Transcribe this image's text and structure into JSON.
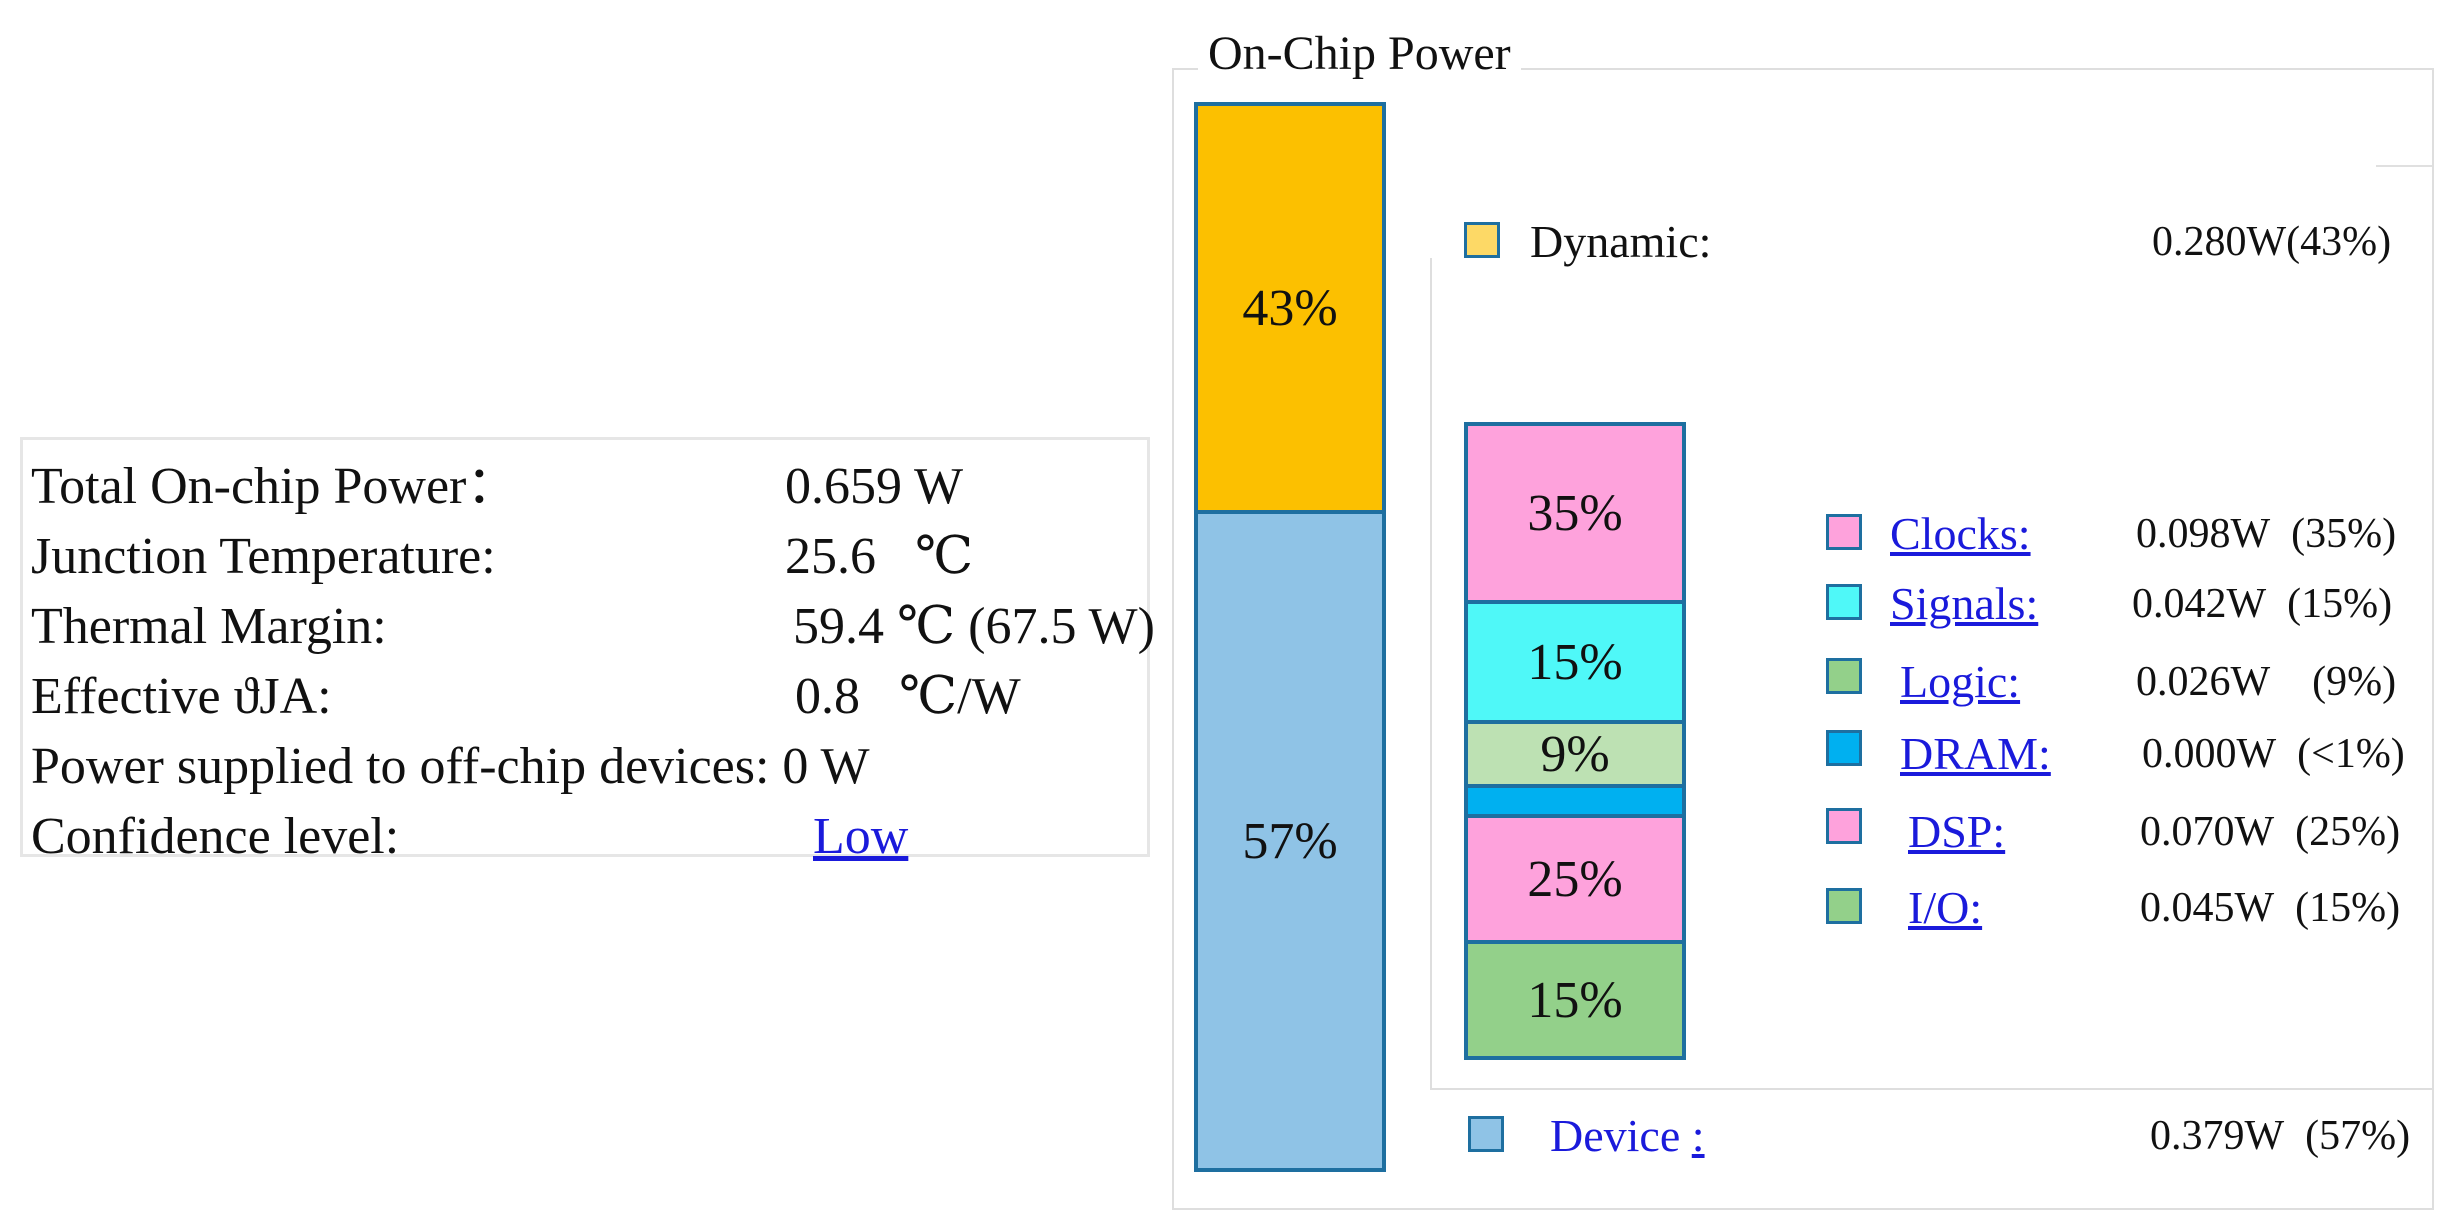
{
  "summary": {
    "rows": [
      {
        "label": "Total On-chip Power：",
        "value": "0.659 W"
      },
      {
        "label": "Junction Temperature:",
        "value": "25.6   ℃"
      },
      {
        "label": "Thermal Margin:",
        "value": "59.4 ℃ (67.5 W)"
      },
      {
        "label": "Effective ϑJA:",
        "value": "0.8   ℃/W"
      },
      {
        "label": "Power supplied to off-chip devices: 0 W",
        "value": ""
      },
      {
        "label": "Confidence level:",
        "value": "Low"
      }
    ]
  },
  "panel": {
    "title": "On-Chip Power",
    "main_bar": {
      "dynamic_pct": "43%",
      "device_pct": "57%"
    },
    "dynamic": {
      "label": "Dynamic:",
      "value": "0.280W(43%)"
    },
    "device": {
      "label": "Device",
      "colon": ":",
      "value": "0.379W  (57%)"
    },
    "breakdown": [
      {
        "pct_label": "35%",
        "label": "Clocks:",
        "value": "0.098W  (35%)"
      },
      {
        "pct_label": "15%",
        "label": "Signals:",
        "value": "0.042W  (15%)"
      },
      {
        "pct_label": "9%",
        "label": "Logic:",
        "value": "0.026W    (9%)"
      },
      {
        "pct_label": "",
        "label": "DRAM:",
        "value": "0.000W  (<1%)"
      },
      {
        "pct_label": "25%",
        "label": "DSP:",
        "value": "0.070W  (25%)"
      },
      {
        "pct_label": "15%",
        "label": "I/O:",
        "value": "0.045W  (15%)"
      }
    ]
  },
  "colors": {
    "dynamic": "#fcc000",
    "dynamic_swatch": "#fdd966",
    "device": "#8fc3e6",
    "clocks": "#fea2dc",
    "signals": "#4ff8f8",
    "logic": "#bde1b3",
    "logic_swatch": "#93d08a",
    "dram": "#00b0f0",
    "dsp": "#fea2dc",
    "io": "#93d08a",
    "border": "#1e6fa0",
    "link": "#1a1adb"
  }
}
